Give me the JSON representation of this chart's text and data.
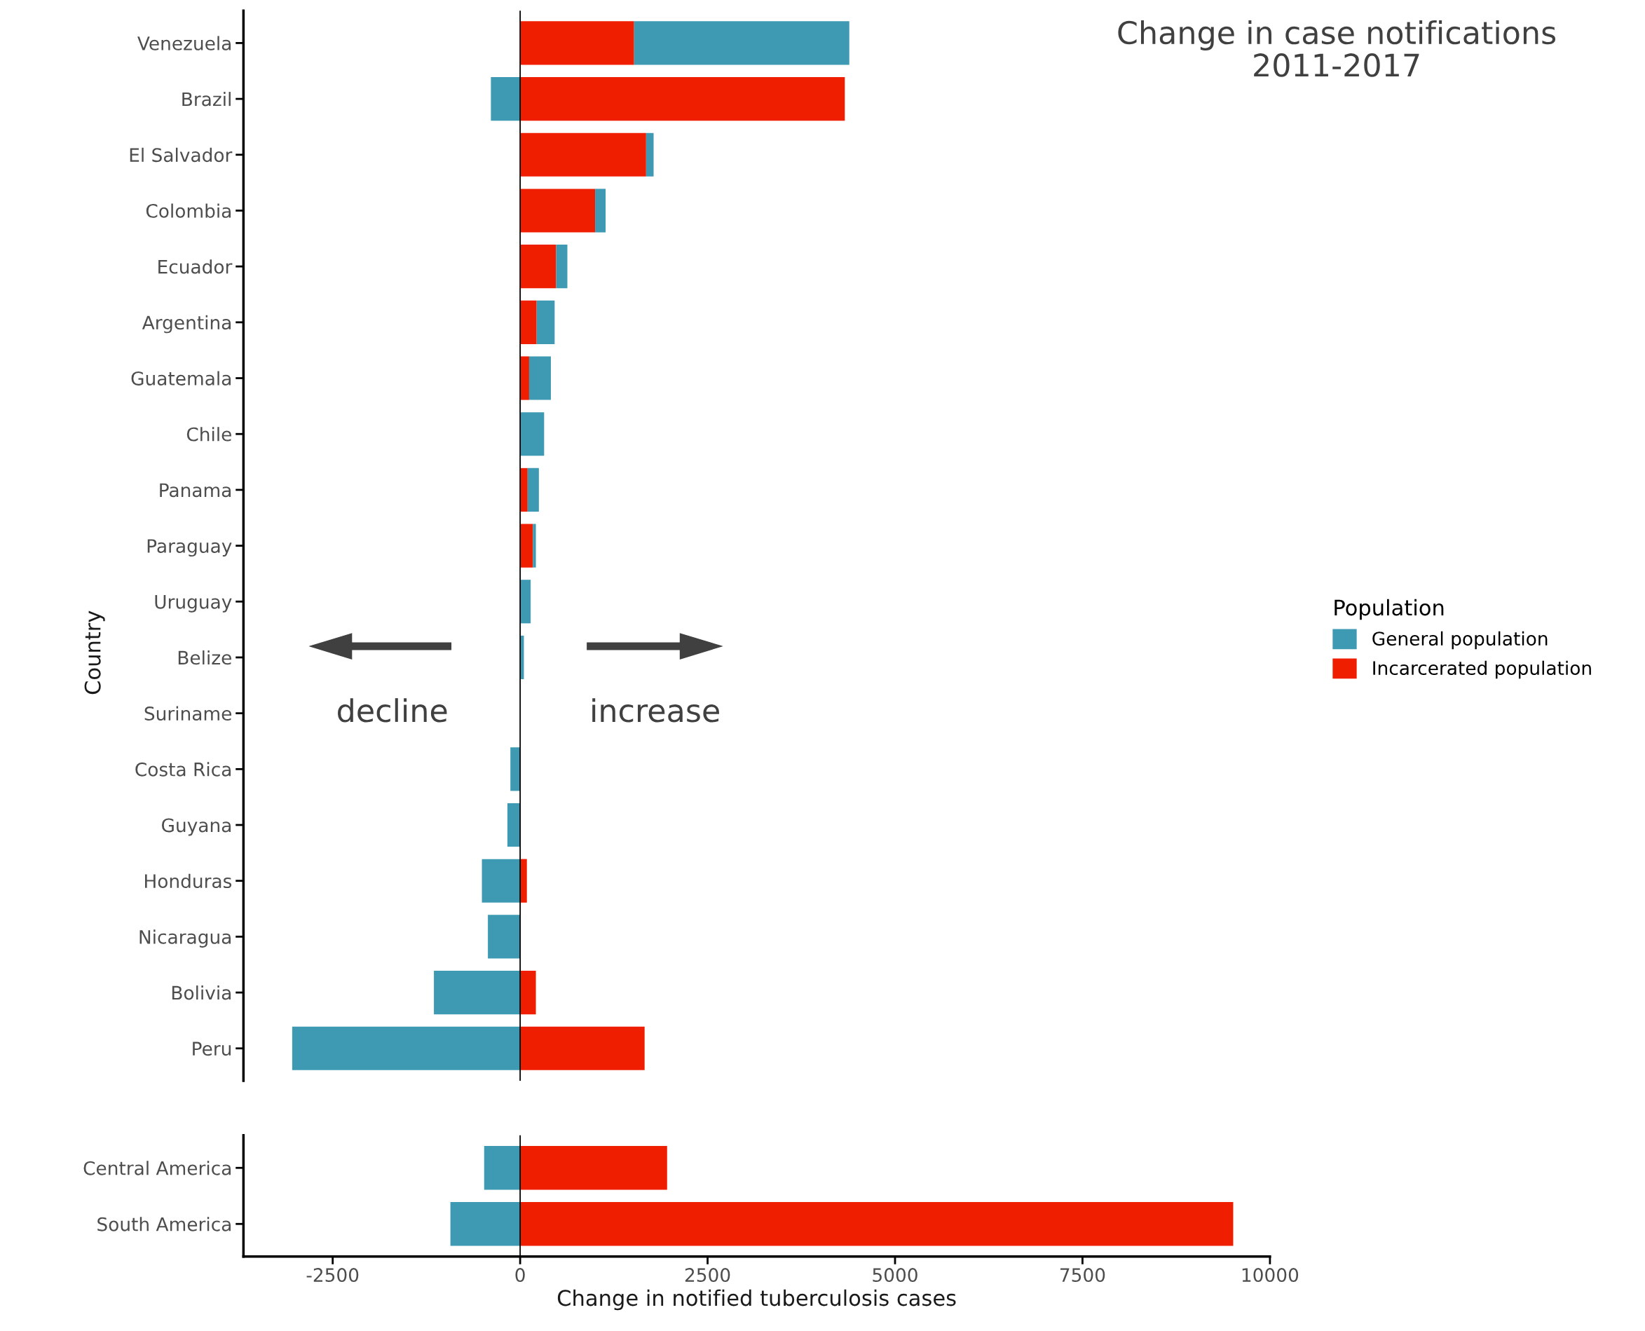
{
  "chart_data": [
    {
      "type": "bar",
      "orientation": "horizontal",
      "stacked": true,
      "title": "Change in case notifications\n2011-2017",
      "ylabel": "Country",
      "legend_title": "Population",
      "legend": "right",
      "tick_labels": "y",
      "grid": false,
      "categories": [
        "Venezuela",
        "Brazil",
        "El Salvador",
        "Colombia",
        "Ecuador",
        "Argentina",
        "Guatemala",
        "Chile",
        "Panama",
        "Paraguay",
        "Uruguay",
        "Belize",
        "Suriname",
        "Costa Rica",
        "Guyana",
        "Honduras",
        "Nicaragua",
        "Bolivia",
        "Peru"
      ],
      "series": [
        {
          "name": "Incarcerated population",
          "color": "#f01e00",
          "values": [
            1520,
            4330,
            1680,
            1000,
            480,
            220,
            120,
            0,
            100,
            170,
            0,
            0,
            0,
            0,
            0,
            90,
            0,
            210,
            1660
          ]
        },
        {
          "name": "General population",
          "color": "#3e9ab3",
          "values": [
            2870,
            -390,
            100,
            140,
            150,
            240,
            290,
            320,
            150,
            40,
            140,
            50,
            0,
            -130,
            -170,
            -510,
            -430,
            -1150,
            -3040
          ]
        }
      ],
      "xlim": [
        -3690,
        10000
      ],
      "xticks": [
        -2500,
        0,
        2500,
        5000,
        7500,
        10000
      ],
      "ref_lines": [
        {
          "axis": "x",
          "value": 0,
          "color": "#000000"
        }
      ],
      "annotations": [
        "decline",
        "increase"
      ]
    },
    {
      "type": "bar",
      "orientation": "horizontal",
      "stacked": true,
      "xlabel": "Change in notified tuberculosis cases",
      "grid": false,
      "categories": [
        "Central America",
        "South America"
      ],
      "series": [
        {
          "color": "#f01e00",
          "values": [
            1960,
            9510
          ]
        },
        {
          "color": "#3e9ab3",
          "values": [
            -480,
            -930
          ]
        }
      ],
      "xlim": [
        -3690,
        10000
      ],
      "xticks": [
        -2500,
        0,
        2500,
        5000,
        7500,
        10000
      ],
      "ref_lines": [
        {
          "axis": "x",
          "value": 0,
          "color": "#000000"
        }
      ]
    }
  ]
}
